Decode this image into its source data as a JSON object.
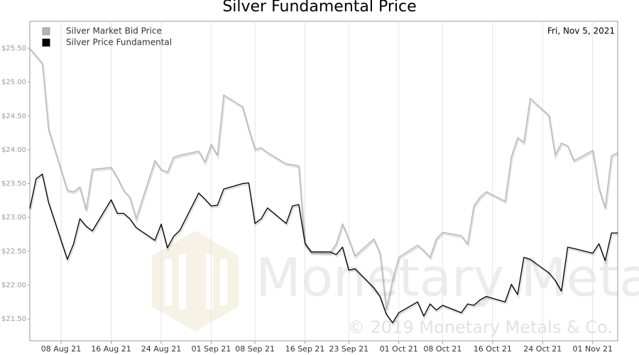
{
  "chart_data": {
    "type": "line",
    "title": "Silver Fundamental Price",
    "annotation": "Fri, Nov 5, 2021",
    "watermark": "Monetary Metals",
    "copyright": "© 2019 Monetary Metals & Co.",
    "x": [
      "2021-08-03",
      "2021-08-04",
      "2021-08-05",
      "2021-08-06",
      "2021-08-09",
      "2021-08-10",
      "2021-08-11",
      "2021-08-12",
      "2021-08-13",
      "2021-08-16",
      "2021-08-17",
      "2021-08-18",
      "2021-08-19",
      "2021-08-20",
      "2021-08-23",
      "2021-08-24",
      "2021-08-25",
      "2021-08-26",
      "2021-08-27",
      "2021-08-30",
      "2021-08-31",
      "2021-09-01",
      "2021-09-02",
      "2021-09-03",
      "2021-09-06",
      "2021-09-07",
      "2021-09-08",
      "2021-09-09",
      "2021-09-10",
      "2021-09-13",
      "2021-09-14",
      "2021-09-15",
      "2021-09-16",
      "2021-09-17",
      "2021-09-20",
      "2021-09-21",
      "2021-09-22",
      "2021-09-23",
      "2021-09-24",
      "2021-09-27",
      "2021-09-28",
      "2021-09-29",
      "2021-09-30",
      "2021-10-01",
      "2021-10-04",
      "2021-10-05",
      "2021-10-06",
      "2021-10-07",
      "2021-10-08",
      "2021-10-11",
      "2021-10-12",
      "2021-10-13",
      "2021-10-14",
      "2021-10-15",
      "2021-10-18",
      "2021-10-19",
      "2021-10-20",
      "2021-10-21",
      "2021-10-22",
      "2021-10-25",
      "2021-10-26",
      "2021-10-27",
      "2021-10-28",
      "2021-10-29",
      "2021-11-01",
      "2021-11-02",
      "2021-11-03",
      "2021-11-04",
      "2021-11-05"
    ],
    "series": [
      {
        "name": "Silver Market Bid Price",
        "color": "#b5b5b5",
        "values": [
          25.5,
          25.39,
          25.28,
          24.3,
          23.4,
          23.38,
          23.45,
          23.11,
          23.71,
          23.74,
          23.59,
          23.4,
          23.3,
          22.98,
          23.84,
          23.71,
          23.67,
          23.89,
          23.92,
          23.98,
          23.82,
          24.08,
          23.92,
          24.81,
          24.64,
          24.31,
          24.01,
          24.03,
          23.96,
          23.79,
          23.78,
          23.76,
          22.59,
          22.48,
          22.47,
          22.61,
          22.9,
          22.68,
          22.43,
          22.68,
          22.47,
          21.64,
          22.07,
          22.41,
          22.59,
          22.51,
          22.41,
          22.68,
          22.78,
          22.73,
          22.61,
          23.17,
          23.3,
          23.38,
          23.24,
          23.9,
          24.18,
          24.11,
          24.76,
          24.51,
          23.92,
          24.1,
          24.06,
          23.84,
          23.99,
          23.43,
          23.14,
          23.91,
          23.96
        ]
      },
      {
        "name": "Silver Price Fundamental",
        "color": "#000000",
        "values": [
          23.13,
          23.57,
          23.64,
          23.22,
          22.38,
          22.61,
          22.98,
          22.87,
          22.8,
          23.26,
          23.06,
          23.06,
          22.98,
          22.85,
          22.66,
          22.9,
          22.55,
          22.72,
          22.81,
          23.36,
          23.27,
          23.17,
          23.18,
          23.42,
          23.5,
          23.51,
          22.91,
          22.98,
          23.14,
          22.91,
          23.17,
          23.19,
          22.62,
          22.49,
          22.49,
          22.45,
          22.56,
          22.22,
          22.24,
          21.96,
          21.83,
          21.57,
          21.44,
          21.59,
          21.75,
          21.54,
          21.72,
          21.63,
          21.7,
          21.59,
          21.72,
          21.7,
          21.78,
          21.83,
          21.75,
          22.01,
          21.86,
          22.41,
          22.38,
          22.18,
          22.07,
          21.91,
          22.56,
          22.54,
          22.47,
          22.61,
          22.36,
          22.77,
          22.77
        ]
      }
    ],
    "xlim": [
      "2021-08-03",
      "2021-11-05"
    ],
    "xticks": [
      {
        "value": "2021-08-08",
        "label": "08 Aug 21"
      },
      {
        "value": "2021-08-16",
        "label": "16 Aug 21"
      },
      {
        "value": "2021-08-24",
        "label": "24 Aug 21"
      },
      {
        "value": "2021-09-01",
        "label": "01 Sep 21"
      },
      {
        "value": "2021-09-08",
        "label": "08 Sep 21"
      },
      {
        "value": "2021-09-16",
        "label": "16 Sep 21"
      },
      {
        "value": "2021-09-23",
        "label": "23 Sep 21"
      },
      {
        "value": "2021-10-01",
        "label": "01 Oct 21"
      },
      {
        "value": "2021-10-08",
        "label": "08 Oct 21"
      },
      {
        "value": "2021-10-16",
        "label": "16 Oct 21"
      },
      {
        "value": "2021-10-24",
        "label": "24 Oct 21"
      },
      {
        "value": "2021-11-01",
        "label": "01 Nov 21"
      }
    ],
    "ylim": [
      21.175,
      25.9
    ],
    "yticks": [
      {
        "value": 21.5,
        "label": "$21.50"
      },
      {
        "value": 22,
        "label": "$22.00"
      },
      {
        "value": 22.5,
        "label": "$22.50"
      },
      {
        "value": 23,
        "label": "$23.00"
      },
      {
        "value": 23.5,
        "label": "$23.50"
      },
      {
        "value": 24,
        "label": "$24.00"
      },
      {
        "value": 24.5,
        "label": "$24.50"
      },
      {
        "value": 25,
        "label": "$25.00"
      },
      {
        "value": 25.5,
        "label": "$25.50"
      }
    ],
    "grid": "x"
  }
}
